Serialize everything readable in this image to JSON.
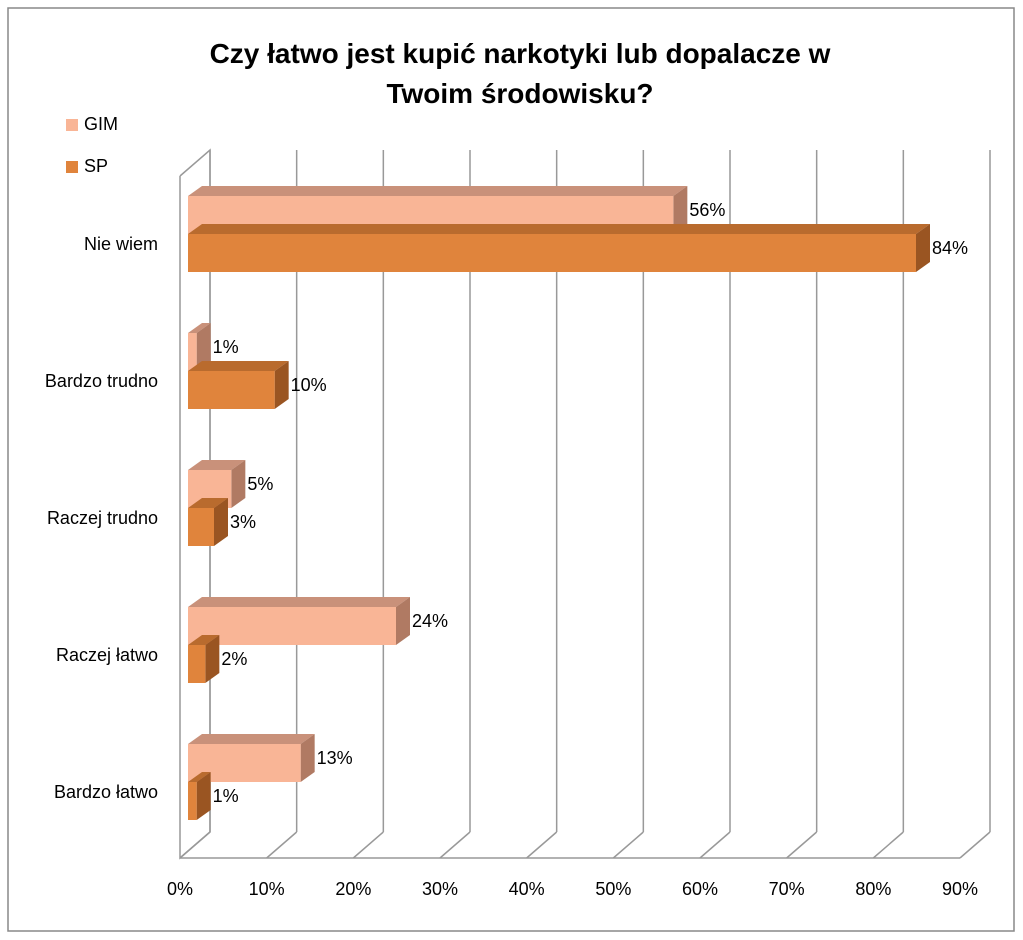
{
  "chart_data": {
    "type": "bar3d_horizontal",
    "title": "Czy łatwo jest kupić narkotyki lub dopalacze w Twoim środowisku?",
    "categories": [
      "Nie wiem",
      "Bardzo trudno",
      "Raczej trudno",
      "Raczej łatwo",
      "Bardzo łatwo"
    ],
    "series": [
      {
        "name": "GIM",
        "color": "#f9b596",
        "values": [
          56,
          1,
          5,
          24,
          13
        ],
        "value_labels": [
          "56%",
          "1%",
          "5%",
          "24%",
          "13%"
        ]
      },
      {
        "name": "SP",
        "color": "#e0843c",
        "values": [
          84,
          10,
          3,
          2,
          1
        ],
        "value_labels": [
          "84%",
          "10%",
          "3%",
          "2%",
          "1%"
        ]
      }
    ],
    "xlim": [
      0,
      90
    ],
    "xticks": [
      {
        "value": 0,
        "label": "0%"
      },
      {
        "value": 10,
        "label": "10%"
      },
      {
        "value": 20,
        "label": "20%"
      },
      {
        "value": 30,
        "label": "30%"
      },
      {
        "value": 40,
        "label": "40%"
      },
      {
        "value": 50,
        "label": "50%"
      },
      {
        "value": 60,
        "label": "60%"
      },
      {
        "value": 70,
        "label": "70%"
      },
      {
        "value": 80,
        "label": "80%"
      },
      {
        "value": 90,
        "label": "90%"
      }
    ],
    "grid": true,
    "legend": "top-left"
  }
}
